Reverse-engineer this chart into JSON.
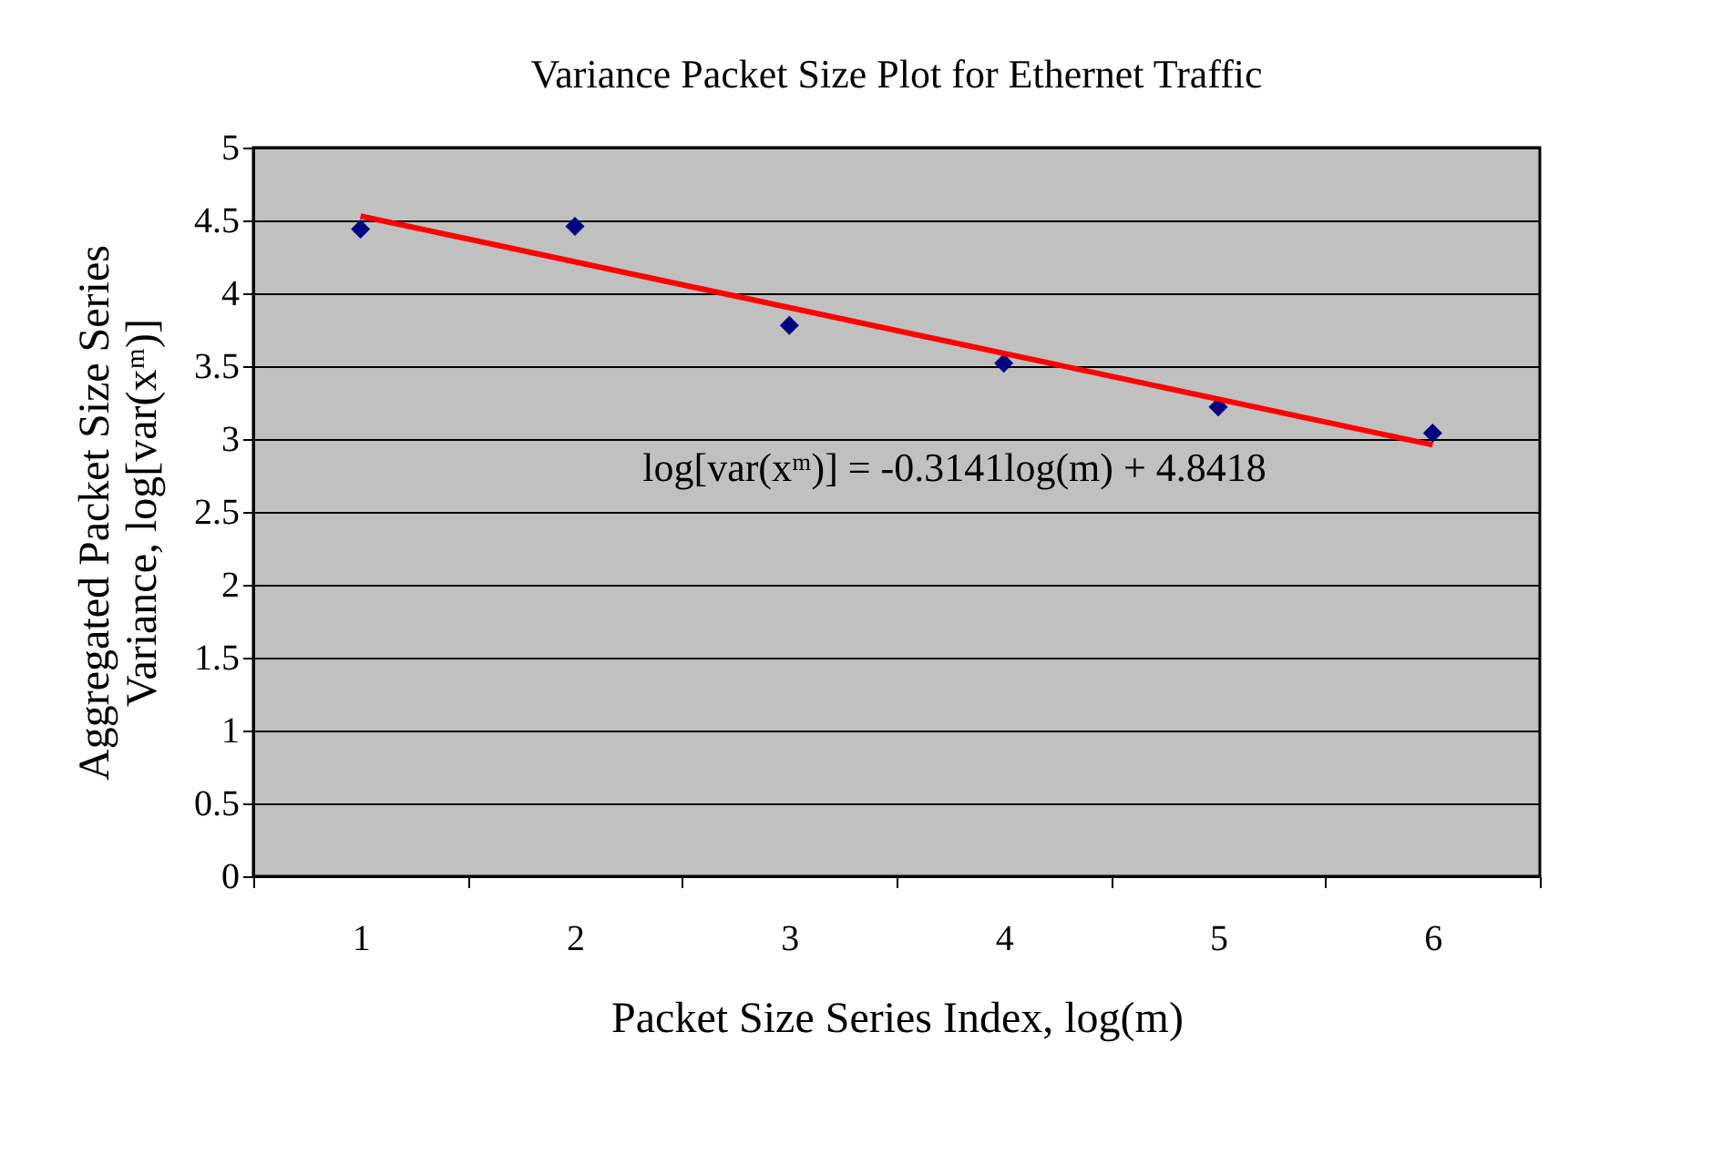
{
  "chart_data": {
    "type": "scatter",
    "title": "Variance Packet Size Plot for Ethernet Traffic",
    "xlabel": "Packet Size Series Index, log(m)",
    "ylabel": "Aggregated Packet Size Series\nVariance, log[var(xᵐ)]",
    "categories": [
      "1",
      "2",
      "3",
      "4",
      "5",
      "6"
    ],
    "series": [
      {
        "color": "#000080",
        "marker": "diamond",
        "values": [
          4.44,
          4.46,
          3.78,
          3.52,
          3.22,
          3.04
        ]
      },
      {
        "type": "line",
        "color": "#ff0000",
        "x": [
          "1",
          "6"
        ],
        "values": [
          4.53,
          2.96
        ]
      }
    ],
    "annotations": [
      "log[var(xᵐ)] = -0.3141log(m) + 4.8418"
    ],
    "ylim": [
      0,
      5
    ],
    "yticks": [
      0,
      0.5,
      1,
      1.5,
      2,
      2.5,
      3,
      3.5,
      4,
      4.5,
      5
    ],
    "grid": "y"
  }
}
